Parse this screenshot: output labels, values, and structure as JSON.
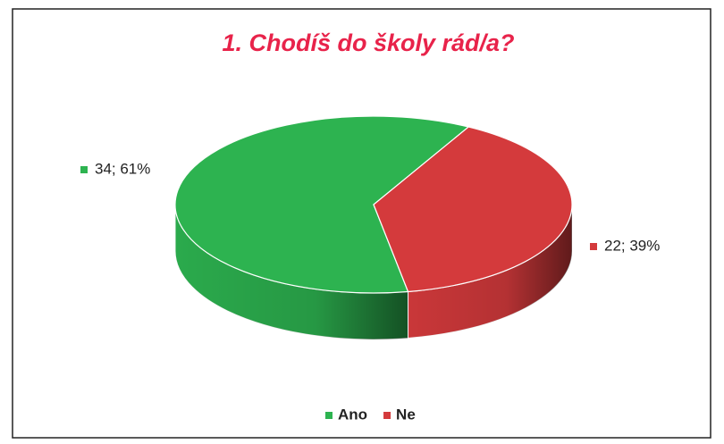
{
  "chart_data": {
    "type": "pie",
    "title": "1. Chodíš do školy rád/a?",
    "categories": [
      "Ano",
      "Ne"
    ],
    "values": [
      34,
      22
    ],
    "value_labels": [
      "34; 61%",
      "22; 39%"
    ],
    "colors": [
      "#2db350",
      "#d43a3c"
    ],
    "legend": "bottom",
    "title_color": "#e8234a"
  }
}
